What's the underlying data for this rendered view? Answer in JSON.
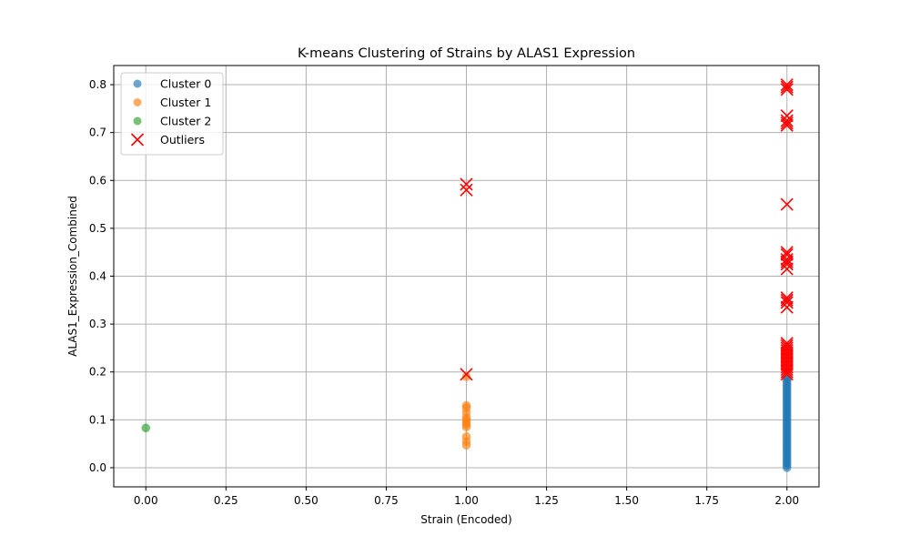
{
  "chart_data": {
    "type": "scatter",
    "title": "K-means Clustering of Strains by ALAS1 Expression",
    "xlabel": "Strain (Encoded)",
    "ylabel": "ALAS1_Expression_Combined",
    "xlim": [
      -0.1,
      2.1
    ],
    "ylim": [
      -0.04,
      0.84
    ],
    "xticks": [
      0.0,
      0.25,
      0.5,
      0.75,
      1.0,
      1.25,
      1.5,
      1.75,
      2.0
    ],
    "xtick_labels": [
      "0.00",
      "0.25",
      "0.50",
      "0.75",
      "1.00",
      "1.25",
      "1.50",
      "1.75",
      "2.00"
    ],
    "yticks": [
      0.0,
      0.1,
      0.2,
      0.3,
      0.4,
      0.5,
      0.6,
      0.7,
      0.8
    ],
    "ytick_labels": [
      "0.0",
      "0.1",
      "0.2",
      "0.3",
      "0.4",
      "0.5",
      "0.6",
      "0.7",
      "0.8"
    ],
    "grid": true,
    "legend_position": "top-left",
    "series": [
      {
        "name": "Cluster 0",
        "marker": "circle",
        "color": "#1f77b4",
        "x": [
          2,
          2,
          2,
          2,
          2,
          2,
          2,
          2,
          2,
          2,
          2,
          2,
          2,
          2,
          2,
          2,
          2,
          2,
          2,
          2,
          2,
          2,
          2,
          2,
          2,
          2,
          2,
          2,
          2,
          2,
          2,
          2,
          2,
          2,
          2,
          2,
          2,
          2,
          2
        ],
        "y": [
          0.0,
          0.005,
          0.01,
          0.015,
          0.02,
          0.025,
          0.03,
          0.035,
          0.04,
          0.045,
          0.05,
          0.055,
          0.06,
          0.065,
          0.07,
          0.075,
          0.08,
          0.085,
          0.09,
          0.095,
          0.1,
          0.105,
          0.11,
          0.115,
          0.12,
          0.125,
          0.13,
          0.135,
          0.14,
          0.145,
          0.15,
          0.155,
          0.16,
          0.165,
          0.17,
          0.175,
          0.18,
          0.185,
          0.19
        ]
      },
      {
        "name": "Cluster 1",
        "marker": "circle",
        "color": "#ff7f0e",
        "x": [
          1,
          1,
          1,
          1,
          1,
          1,
          1,
          1,
          1,
          1,
          1,
          1
        ],
        "y": [
          0.047,
          0.055,
          0.065,
          0.085,
          0.09,
          0.095,
          0.1,
          0.105,
          0.115,
          0.125,
          0.13,
          0.19
        ]
      },
      {
        "name": "Cluster 2",
        "marker": "circle",
        "color": "#2ca02c",
        "x": [
          0
        ],
        "y": [
          0.083
        ]
      },
      {
        "name": "Outliers",
        "marker": "x",
        "color": "#ff0000",
        "x": [
          1,
          1,
          1,
          2,
          2,
          2,
          2,
          2,
          2,
          2,
          2,
          2,
          2,
          2,
          2,
          2,
          2,
          2,
          2,
          2,
          2,
          2,
          2,
          2,
          2,
          2,
          2,
          2,
          2,
          2,
          2,
          2,
          2,
          2,
          2
        ],
        "y": [
          0.195,
          0.58,
          0.592,
          0.195,
          0.2,
          0.205,
          0.21,
          0.215,
          0.22,
          0.225,
          0.23,
          0.235,
          0.24,
          0.245,
          0.25,
          0.255,
          0.26,
          0.335,
          0.345,
          0.35,
          0.355,
          0.415,
          0.425,
          0.43,
          0.435,
          0.445,
          0.45,
          0.55,
          0.715,
          0.725,
          0.735,
          0.79,
          0.795,
          0.8,
          0.72
        ]
      }
    ]
  }
}
